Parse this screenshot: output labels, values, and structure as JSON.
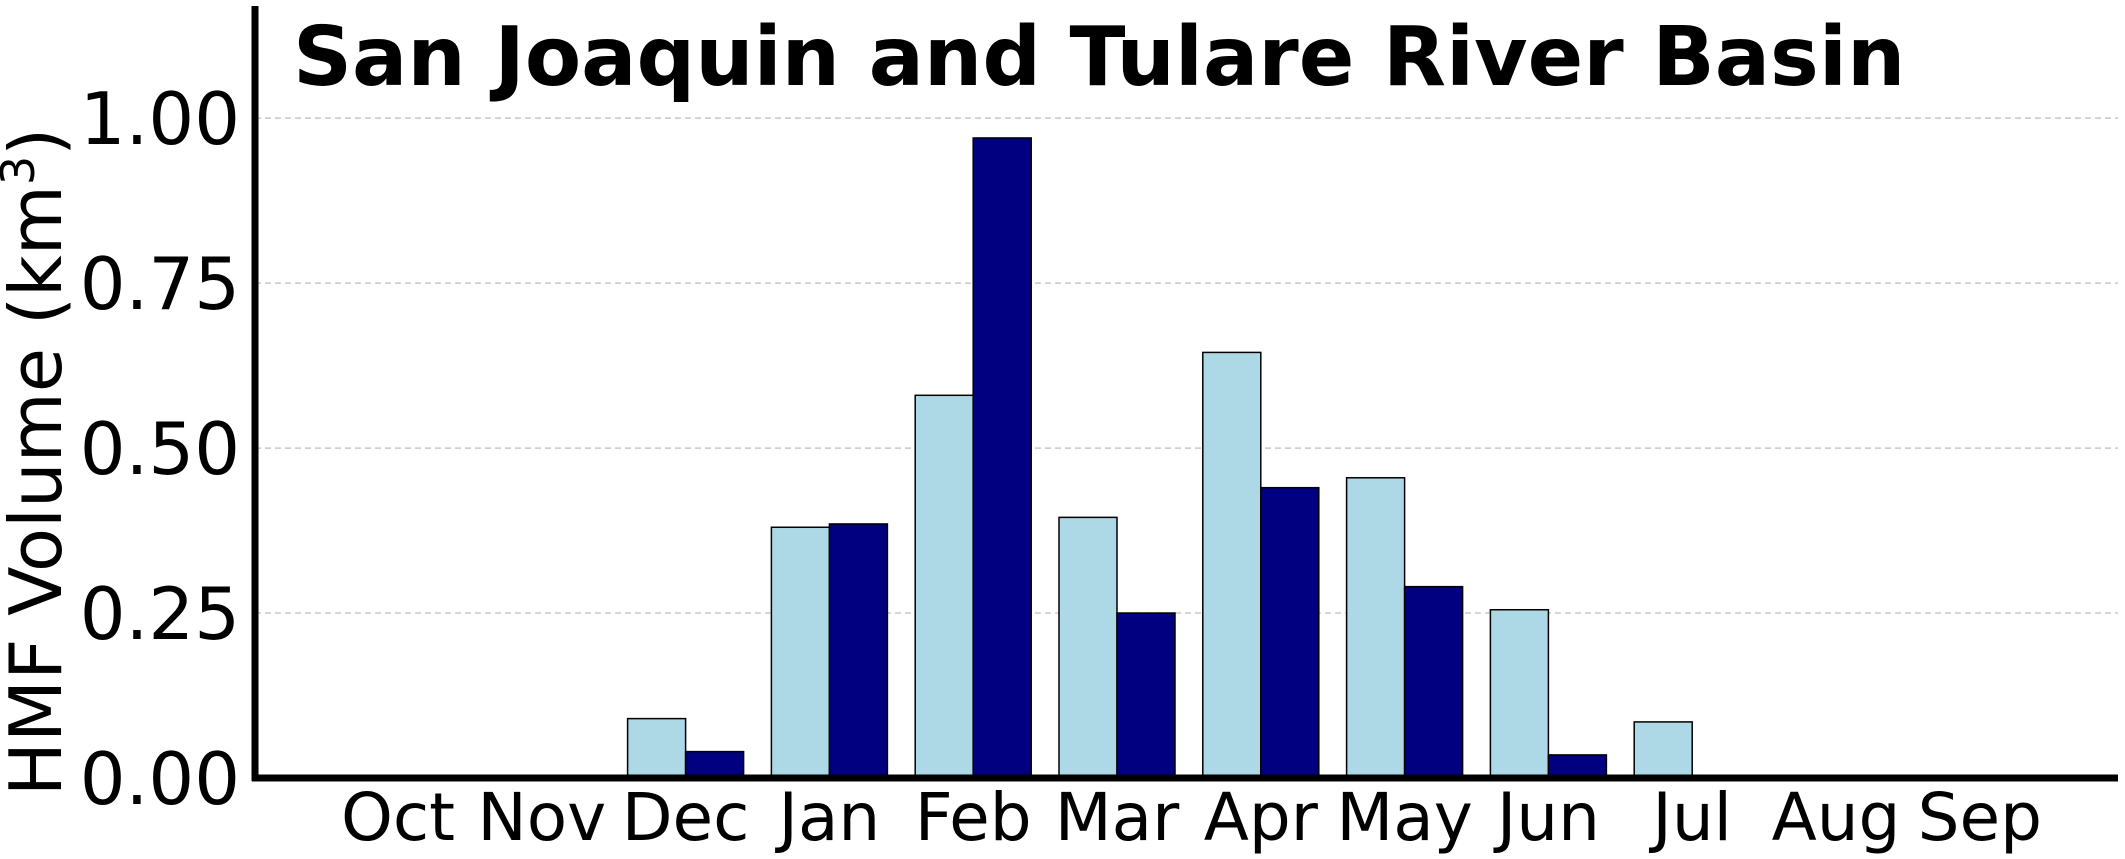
{
  "chart_data": {
    "type": "bar",
    "title": "San Joaquin and Tulare River Basin",
    "xlabel": "",
    "ylabel": "HMF Volume (km",
    "ylabel_superscript": "3",
    "ylabel_suffix": ")",
    "categories": [
      "Oct",
      "Nov",
      "Dec",
      "Jan",
      "Feb",
      "Mar",
      "Apr",
      "May",
      "Jun",
      "Jul",
      "Aug",
      "Sep"
    ],
    "series": [
      {
        "values": [
          0,
          0,
          0.09,
          0.38,
          0.58,
          0.395,
          0.645,
          0.455,
          0.255,
          0.085,
          0,
          0
        ],
        "color": "#add8e6"
      },
      {
        "values": [
          0,
          0,
          0.04,
          0.385,
          0.97,
          0.25,
          0.44,
          0.29,
          0.035,
          0.003,
          0,
          0
        ],
        "color": "#000080"
      }
    ],
    "yticks": [
      "0.00",
      "0.25",
      "0.50",
      "0.75",
      "1.00"
    ],
    "ytick_values": [
      0,
      0.25,
      0.5,
      0.75,
      1.0
    ],
    "ylim": [
      0,
      1.17
    ],
    "grid": "horizontal-dashed",
    "legend": "none"
  }
}
